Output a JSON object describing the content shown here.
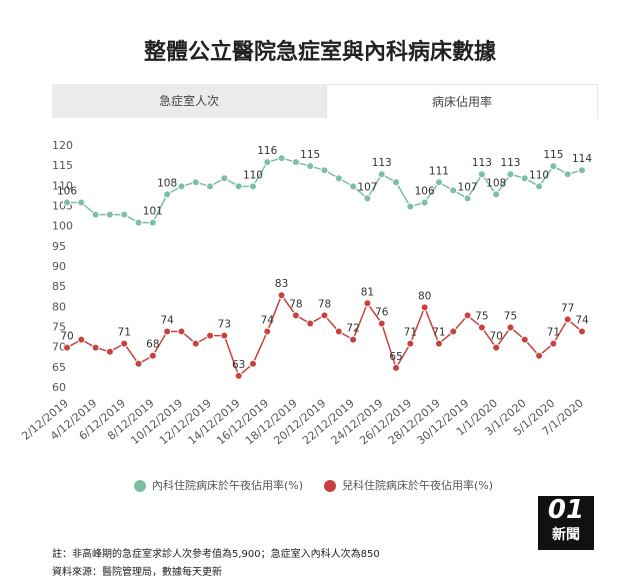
{
  "title": "整體公立醫院急症室與內科病床數據",
  "tabs": [
    "急症室人次",
    "病床佔用率"
  ],
  "chart_data": {
    "type": "line",
    "categories": [
      "2/12/2019",
      null,
      "4/12/2019",
      null,
      "6/12/2019",
      null,
      "8/12/2019",
      null,
      "10/12/2019",
      null,
      "12/12/2019",
      null,
      "14/12/2019",
      null,
      "16/12/2019",
      null,
      "18/12/2019",
      null,
      "20/12/2019",
      null,
      "22/12/2019",
      null,
      "24/12/2019",
      null,
      "26/12/2019",
      null,
      "28/12/2019",
      null,
      "30/12/2019",
      null,
      "1/1/2020",
      null,
      "3/1/2020",
      null,
      "5/1/2020",
      null,
      "7/1/2020"
    ],
    "series": [
      {
        "name": "內科住院病床於午夜佔用率(%)",
        "color": "#7dbfa3",
        "values": [
          106,
          106,
          103,
          103,
          103,
          101,
          101,
          108,
          110,
          111,
          110,
          112,
          110,
          110,
          116,
          117,
          116,
          115,
          114,
          112,
          110,
          107,
          113,
          111,
          105,
          106,
          111,
          109,
          107,
          113,
          108,
          113,
          112,
          110,
          115,
          113,
          114
        ],
        "value_labels": [
          "106",
          null,
          null,
          null,
          null,
          null,
          "101",
          "108",
          null,
          null,
          null,
          null,
          null,
          "110",
          "116",
          null,
          null,
          "115",
          null,
          null,
          null,
          "107",
          "113",
          null,
          null,
          "106",
          "111",
          null,
          "107",
          "113",
          "108",
          "113",
          null,
          "110",
          "115",
          null,
          "114"
        ]
      },
      {
        "name": "兒科住院病床於午夜佔用率(%)",
        "color": "#c9413f",
        "values": [
          70,
          72,
          70,
          69,
          71,
          66,
          68,
          74,
          74,
          71,
          73,
          73,
          63,
          66,
          74,
          83,
          78,
          76,
          78,
          74,
          72,
          81,
          76,
          65,
          71,
          80,
          71,
          74,
          78,
          75,
          70,
          75,
          72,
          68,
          71,
          77,
          74
        ],
        "value_labels": [
          "70",
          null,
          null,
          null,
          "71",
          null,
          "68",
          "74",
          null,
          null,
          null,
          "73",
          "63",
          null,
          "74",
          "83",
          "78",
          null,
          "78",
          null,
          "72",
          "81",
          "76",
          "65",
          "71",
          "80",
          "71",
          null,
          null,
          "75",
          "70",
          "75",
          null,
          null,
          "71",
          "77",
          "74"
        ]
      }
    ],
    "ylim": [
      60,
      120
    ],
    "yticks": [
      60,
      65,
      70,
      75,
      80,
      85,
      90,
      95,
      100,
      105,
      110,
      115,
      120
    ]
  },
  "logo": {
    "mark": "01",
    "text": "新聞"
  },
  "notes": [
    "註：非高峰期的急症室求診人次參考值為5,900；急症室入內科人次為850",
    "資料來源：醫院管理局，數據每天更新"
  ]
}
